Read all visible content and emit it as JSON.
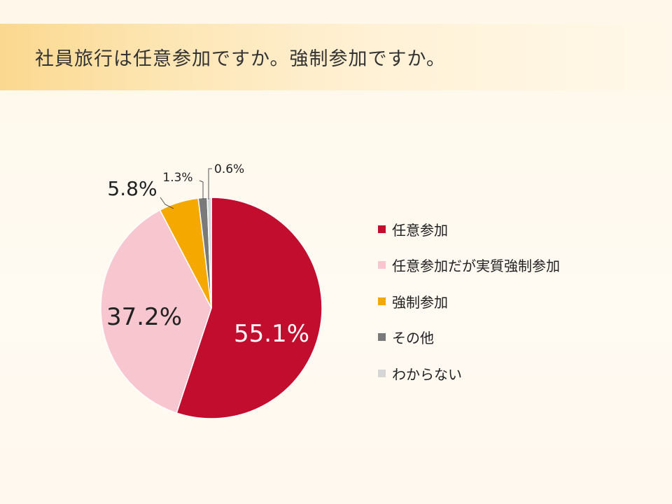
{
  "title": "社員旅行は任意参加ですか。強制参加ですか。",
  "chart_data": {
    "type": "pie",
    "title": "",
    "legend_position": "right",
    "start_angle": "12 o'clock",
    "direction": "clockwise",
    "slices": [
      {
        "label": "任意参加",
        "value": 55.1,
        "display": "55.1%",
        "color": "#c30d2f",
        "label_placement": "inside"
      },
      {
        "label": "任意参加だが実質強制参加",
        "value": 37.2,
        "display": "37.2%",
        "color": "#f8c6cf",
        "label_placement": "inside"
      },
      {
        "label": "強制参加",
        "value": 5.8,
        "display": "5.8%",
        "color": "#f5a800",
        "label_placement": "outside"
      },
      {
        "label": "その他",
        "value": 1.3,
        "display": "1.3%",
        "color": "#7a7a7a",
        "label_placement": "outside"
      },
      {
        "label": "わからない",
        "value": 0.6,
        "display": "0.6%",
        "color": "#d6d6d6",
        "label_placement": "outside"
      }
    ]
  }
}
